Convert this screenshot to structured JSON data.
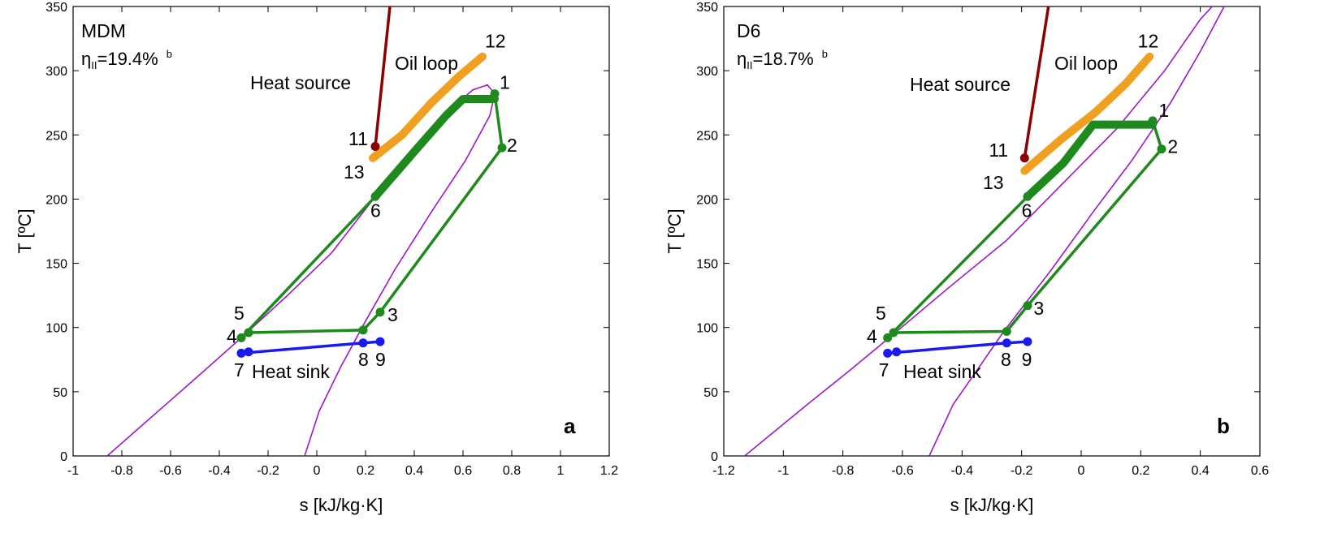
{
  "colors": {
    "dome": "#9a18c8",
    "cycle": "#1e8a1e",
    "heat_source": "#8b0000",
    "oil_loop": "#f0a020",
    "heat_sink": "#1a1aee"
  },
  "chart_data": [
    {
      "type": "line",
      "panel": "a",
      "fluid": "MDM",
      "efficiency": {
        "prefix": "η",
        "subscript": "II",
        "value": "=19.4%",
        "superscript": "b"
      },
      "xlabel": "s [kJ/kg·K]",
      "ylabel": "T [ºC]",
      "xlim": [
        -1,
        1.2
      ],
      "ylim": [
        0,
        350
      ],
      "xticks": [
        -1,
        -0.8,
        -0.6,
        -0.4,
        -0.2,
        0,
        0.2,
        0.4,
        0.6,
        0.8,
        1,
        1.2
      ],
      "xtick_labels": [
        "-1",
        "-0.8",
        "-0.6",
        "-0.4",
        "-0.2",
        "0",
        "0.2",
        "0.4",
        "0.6",
        "0.8",
        "1",
        "1.2"
      ],
      "yticks": [
        0,
        50,
        100,
        150,
        200,
        250,
        300,
        350
      ],
      "ytick_labels": [
        "0",
        "50",
        "100",
        "150",
        "200",
        "250",
        "300",
        "350"
      ],
      "annotations": {
        "heat_source": "Heat source",
        "oil_loop": "Oil loop",
        "heat_sink": "Heat sink"
      },
      "series": [
        {
          "name": "saturation-dome",
          "color_key": "dome",
          "width": 1.6,
          "points": [
            [
              -0.86,
              0
            ],
            [
              -0.62,
              40
            ],
            [
              -0.47,
              65
            ],
            [
              -0.31,
              92
            ],
            [
              -0.12,
              125
            ],
            [
              0.06,
              158
            ],
            [
              0.24,
              202
            ],
            [
              0.42,
              240
            ],
            [
              0.56,
              272
            ],
            [
              0.64,
              285
            ],
            [
              0.7,
              289
            ],
            [
              0.73,
              282
            ],
            [
              0.71,
              265
            ],
            [
              0.61,
              230
            ],
            [
              0.47,
              190
            ],
            [
              0.32,
              145
            ],
            [
              0.2,
              105
            ],
            [
              0.1,
              70
            ],
            [
              0.01,
              35
            ],
            [
              -0.05,
              0
            ]
          ]
        },
        {
          "name": "cycle-upper",
          "color_key": "cycle",
          "width": 3.5,
          "points": [
            [
              0.73,
              282
            ],
            [
              0.76,
              240
            ],
            [
              0.26,
              112
            ],
            [
              0.19,
              98
            ],
            [
              -0.28,
              96
            ],
            [
              -0.31,
              92
            ]
          ]
        },
        {
          "name": "cycle-lower",
          "color_key": "cycle",
          "width": 3.5,
          "points": [
            [
              -0.31,
              92
            ],
            [
              0.24,
              202
            ]
          ]
        },
        {
          "name": "evaporator",
          "color_key": "cycle",
          "width": 10,
          "points": [
            [
              0.24,
              202
            ],
            [
              0.4,
              237
            ],
            [
              0.53,
              265
            ],
            [
              0.6,
              278
            ],
            [
              0.73,
              278
            ]
          ]
        },
        {
          "name": "heat-source",
          "color_key": "heat_source",
          "width": 3.5,
          "points": [
            [
              0.24,
              241
            ],
            [
              0.3,
              350
            ]
          ]
        },
        {
          "name": "oil-loop",
          "color_key": "oil_loop",
          "width": 10,
          "points": [
            [
              0.23,
              232
            ],
            [
              0.35,
              250
            ],
            [
              0.47,
              275
            ],
            [
              0.58,
              295
            ],
            [
              0.68,
              311
            ]
          ]
        },
        {
          "name": "heat-sink",
          "color_key": "heat_sink",
          "width": 3.5,
          "points": [
            [
              -0.31,
              80
            ],
            [
              0.19,
              88
            ],
            [
              0.26,
              89
            ]
          ]
        }
      ],
      "markers": [
        {
          "s": 0.73,
          "T": 282,
          "color_key": "cycle"
        },
        {
          "s": 0.76,
          "T": 240,
          "color_key": "cycle"
        },
        {
          "s": 0.26,
          "T": 112,
          "color_key": "cycle"
        },
        {
          "s": 0.19,
          "T": 98,
          "color_key": "cycle"
        },
        {
          "s": -0.28,
          "T": 96,
          "color_key": "cycle"
        },
        {
          "s": -0.31,
          "T": 92,
          "color_key": "cycle"
        },
        {
          "s": 0.24,
          "T": 202,
          "color_key": "cycle"
        },
        {
          "s": 0.24,
          "T": 241,
          "color_key": "heat_source"
        },
        {
          "s": -0.31,
          "T": 80,
          "color_key": "heat_sink"
        },
        {
          "s": -0.28,
          "T": 81,
          "color_key": "heat_sink"
        },
        {
          "s": 0.19,
          "T": 88,
          "color_key": "heat_sink"
        },
        {
          "s": 0.26,
          "T": 89,
          "color_key": "heat_sink"
        }
      ],
      "point_labels": [
        {
          "text": "1",
          "s": 0.75,
          "T": 286
        },
        {
          "text": "2",
          "s": 0.78,
          "T": 237
        },
        {
          "text": "3",
          "s": 0.29,
          "T": 105
        },
        {
          "text": "4",
          "s": -0.37,
          "T": 88
        },
        {
          "text": "5",
          "s": -0.34,
          "T": 106
        },
        {
          "text": "6",
          "s": 0.22,
          "T": 186
        },
        {
          "text": "7",
          "s": -0.34,
          "T": 62
        },
        {
          "text": "8",
          "s": 0.17,
          "T": 70
        },
        {
          "text": "9",
          "s": 0.24,
          "T": 70
        },
        {
          "text": "11",
          "s": 0.13,
          "T": 242
        },
        {
          "text": "12",
          "s": 0.69,
          "T": 318
        },
        {
          "text": "13",
          "s": 0.11,
          "T": 216
        }
      ]
    },
    {
      "type": "line",
      "panel": "b",
      "fluid": "D6",
      "efficiency": {
        "prefix": "η",
        "subscript": "II",
        "value": "=18.7%",
        "superscript": "b"
      },
      "xlabel": "s [kJ/kg·K]",
      "ylabel": "T [ºC]",
      "xlim": [
        -1.2,
        0.6
      ],
      "ylim": [
        0,
        350
      ],
      "xticks": [
        -1.2,
        -1,
        -0.8,
        -0.6,
        -0.4,
        -0.2,
        0,
        0.2,
        0.4,
        0.6
      ],
      "xtick_labels": [
        "-1.2",
        "-1",
        "-0.8",
        "-0.6",
        "-0.4",
        "-0.2",
        "0",
        "0.2",
        "0.4",
        "0.6"
      ],
      "yticks": [
        0,
        50,
        100,
        150,
        200,
        250,
        300,
        350
      ],
      "ytick_labels": [
        "0",
        "50",
        "100",
        "150",
        "200",
        "250",
        "300",
        "350"
      ],
      "annotations": {
        "heat_source": "Heat source",
        "oil_loop": "Oil loop",
        "heat_sink": "Heat sink"
      },
      "series": [
        {
          "name": "saturation-dome-left",
          "color_key": "dome",
          "width": 1.6,
          "points": [
            [
              -1.13,
              0
            ],
            [
              -0.92,
              40
            ],
            [
              -0.78,
              66
            ],
            [
              -0.65,
              91
            ],
            [
              -0.45,
              130
            ],
            [
              -0.25,
              168
            ],
            [
              -0.05,
              215
            ],
            [
              0.12,
              255
            ],
            [
              0.28,
              300
            ],
            [
              0.4,
              340
            ],
            [
              0.44,
              350
            ]
          ]
        },
        {
          "name": "saturation-dome-right",
          "color_key": "dome",
          "width": 1.6,
          "points": [
            [
              -0.51,
              0
            ],
            [
              -0.43,
              40
            ],
            [
              -0.34,
              70
            ],
            [
              -0.26,
              97
            ],
            [
              -0.1,
              145
            ],
            [
              0.04,
              190
            ],
            [
              0.17,
              230
            ],
            [
              0.3,
              275
            ],
            [
              0.4,
              315
            ],
            [
              0.48,
              350
            ]
          ]
        },
        {
          "name": "cycle-upper",
          "color_key": "cycle",
          "width": 3.5,
          "points": [
            [
              0.24,
              261
            ],
            [
              0.27,
              239
            ],
            [
              -0.18,
              117
            ],
            [
              -0.25,
              97
            ],
            [
              -0.63,
              96
            ],
            [
              -0.65,
              92
            ]
          ]
        },
        {
          "name": "cycle-lower",
          "color_key": "cycle",
          "width": 3.5,
          "points": [
            [
              -0.65,
              92
            ],
            [
              -0.18,
              202
            ]
          ]
        },
        {
          "name": "evaporator",
          "color_key": "cycle",
          "width": 10,
          "points": [
            [
              -0.18,
              202
            ],
            [
              -0.06,
              228
            ],
            [
              0.04,
              258
            ],
            [
              0.24,
              258
            ]
          ]
        },
        {
          "name": "heat-source",
          "color_key": "heat_source",
          "width": 3.5,
          "points": [
            [
              -0.19,
              232
            ],
            [
              -0.11,
              350
            ]
          ]
        },
        {
          "name": "oil-loop",
          "color_key": "oil_loop",
          "width": 10,
          "points": [
            [
              -0.19,
              222
            ],
            [
              -0.07,
              246
            ],
            [
              0.05,
              268
            ],
            [
              0.15,
              290
            ],
            [
              0.23,
              311
            ]
          ]
        },
        {
          "name": "heat-sink",
          "color_key": "heat_sink",
          "width": 3.5,
          "points": [
            [
              -0.65,
              80
            ],
            [
              -0.25,
              88
            ],
            [
              -0.18,
              89
            ]
          ]
        }
      ],
      "markers": [
        {
          "s": 0.24,
          "T": 261,
          "color_key": "cycle"
        },
        {
          "s": 0.27,
          "T": 239,
          "color_key": "cycle"
        },
        {
          "s": -0.18,
          "T": 117,
          "color_key": "cycle"
        },
        {
          "s": -0.25,
          "T": 97,
          "color_key": "cycle"
        },
        {
          "s": -0.63,
          "T": 96,
          "color_key": "cycle"
        },
        {
          "s": -0.65,
          "T": 92,
          "color_key": "cycle"
        },
        {
          "s": -0.18,
          "T": 202,
          "color_key": "cycle"
        },
        {
          "s": -0.19,
          "T": 232,
          "color_key": "heat_source"
        },
        {
          "s": -0.65,
          "T": 80,
          "color_key": "heat_sink"
        },
        {
          "s": -0.62,
          "T": 81,
          "color_key": "heat_sink"
        },
        {
          "s": -0.25,
          "T": 88,
          "color_key": "heat_sink"
        },
        {
          "s": -0.18,
          "T": 89,
          "color_key": "heat_sink"
        }
      ],
      "point_labels": [
        {
          "text": "1",
          "s": 0.26,
          "T": 264
        },
        {
          "text": "2",
          "s": 0.29,
          "T": 236
        },
        {
          "text": "3",
          "s": -0.16,
          "T": 110
        },
        {
          "text": "4",
          "s": -0.72,
          "T": 88
        },
        {
          "text": "5",
          "s": -0.69,
          "T": 106
        },
        {
          "text": "6",
          "s": -0.2,
          "T": 186
        },
        {
          "text": "7",
          "s": -0.68,
          "T": 62
        },
        {
          "text": "8",
          "s": -0.27,
          "T": 70
        },
        {
          "text": "9",
          "s": -0.2,
          "T": 70
        },
        {
          "text": "11",
          "s": -0.31,
          "T": 233
        },
        {
          "text": "12",
          "s": 0.19,
          "T": 318
        },
        {
          "text": "13",
          "s": -0.33,
          "T": 208
        }
      ]
    }
  ]
}
